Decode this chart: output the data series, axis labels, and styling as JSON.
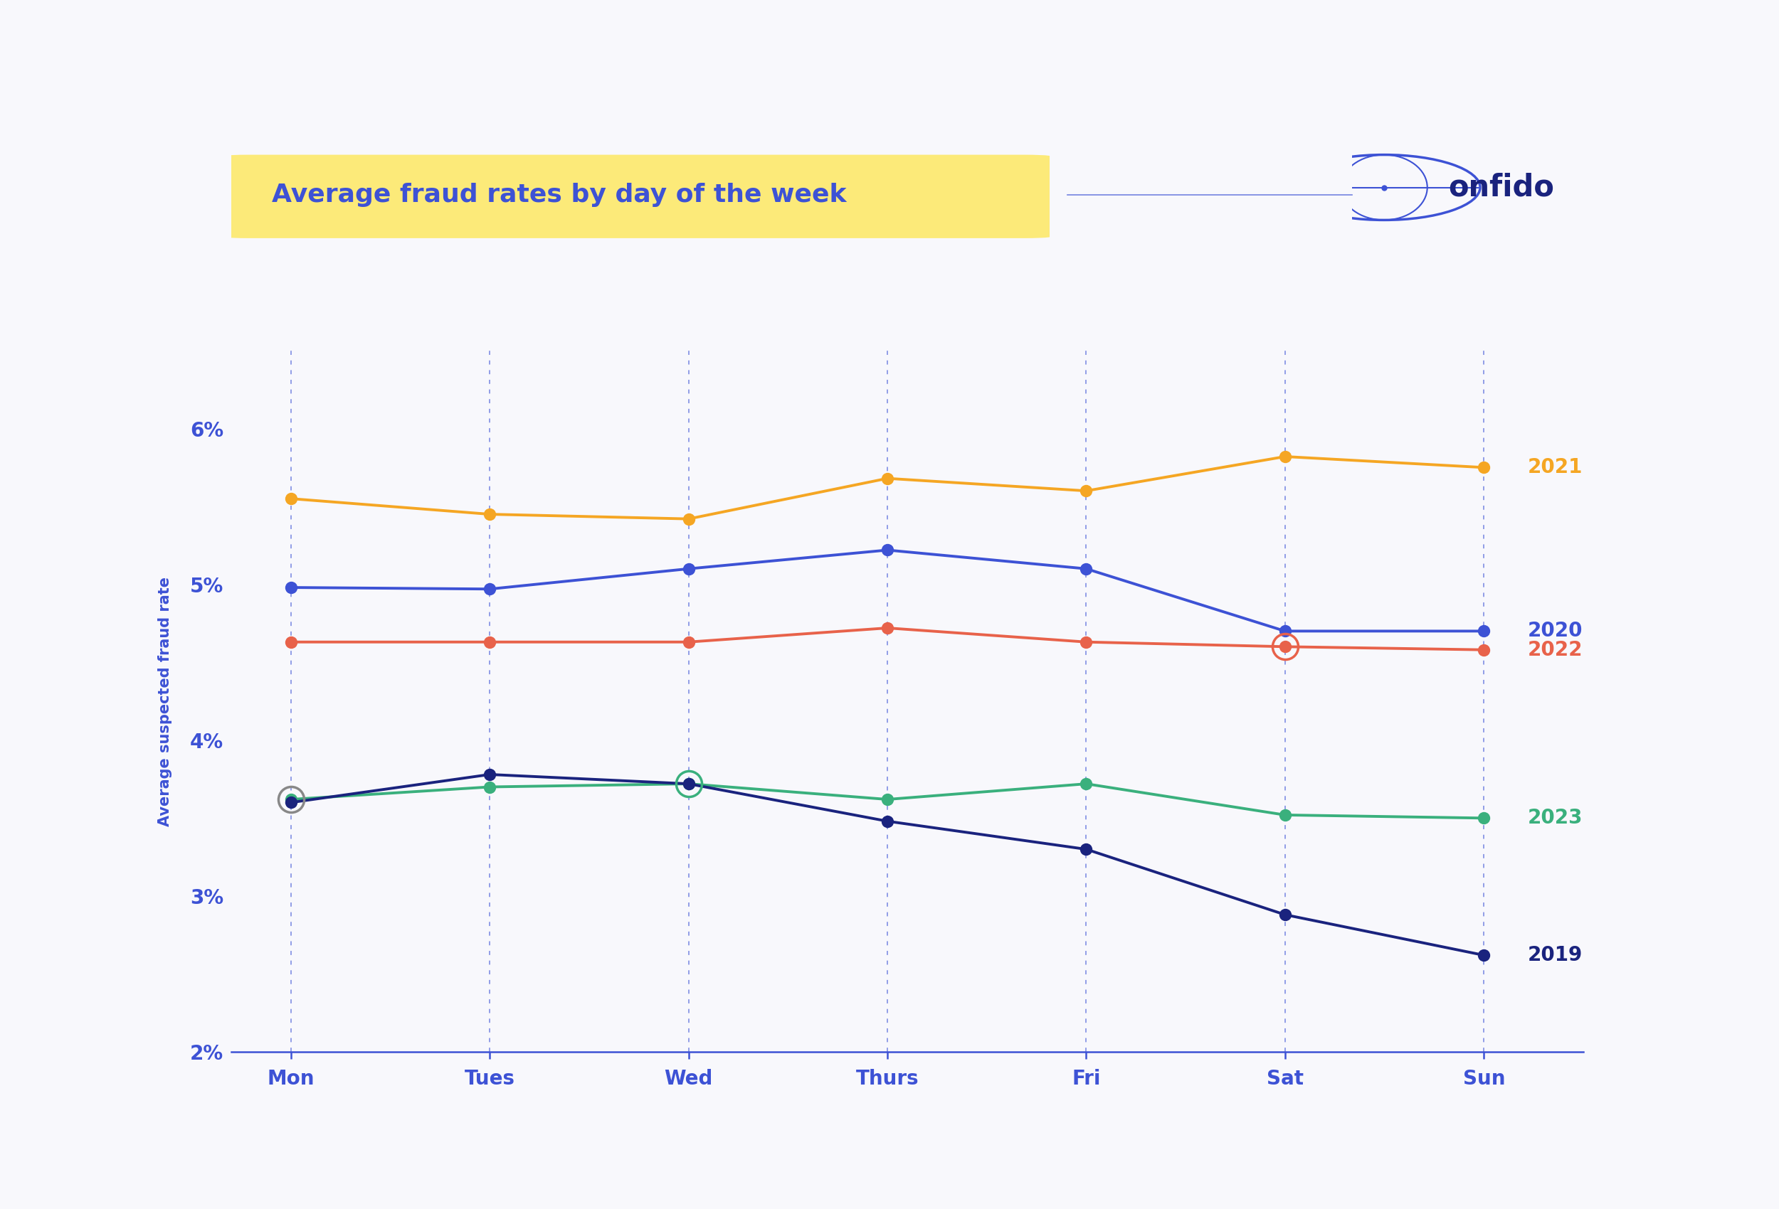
{
  "title": "Average fraud rates by day of the week",
  "ylabel": "Average suspected fraud rate",
  "background_color": "#f8f8fc",
  "days": [
    "Mon",
    "Tues",
    "Wed",
    "Thurs",
    "Fri",
    "Sat",
    "Sun"
  ],
  "series": {
    "2021": {
      "values": [
        5.55,
        5.45,
        5.42,
        5.68,
        5.6,
        5.82,
        5.75
      ],
      "color": "#f5a623"
    },
    "2020": {
      "values": [
        4.98,
        4.97,
        5.1,
        5.22,
        5.1,
        4.7,
        4.7
      ],
      "color": "#3d52d5"
    },
    "2022": {
      "values": [
        4.63,
        4.63,
        4.63,
        4.72,
        4.63,
        4.6,
        4.58
      ],
      "color": "#e8624a"
    },
    "2023": {
      "values": [
        3.62,
        3.7,
        3.72,
        3.62,
        3.72,
        3.52,
        3.5
      ],
      "color": "#3ab07d"
    },
    "2019": {
      "values": [
        3.6,
        3.78,
        3.72,
        3.48,
        3.3,
        2.88,
        2.62
      ],
      "color": "#1a237e"
    }
  },
  "ylim": [
    2.0,
    6.5
  ],
  "yticks": [
    2.0,
    3.0,
    4.0,
    5.0,
    6.0
  ],
  "ytick_labels": [
    "2%",
    "3%",
    "4%",
    "5%",
    "6%"
  ],
  "title_fontsize": 26,
  "axis_label_fontsize": 15,
  "tick_fontsize": 20,
  "series_label_fontsize": 20,
  "line_width": 2.8,
  "marker_size": 11,
  "text_color": "#3d52d5",
  "axis_color": "#3d52d5",
  "grid_color": "#3d52d5",
  "highlight_yellow": "#fde96e",
  "onfido_text_color": "#1a237e",
  "onfido_fontsize": 30
}
